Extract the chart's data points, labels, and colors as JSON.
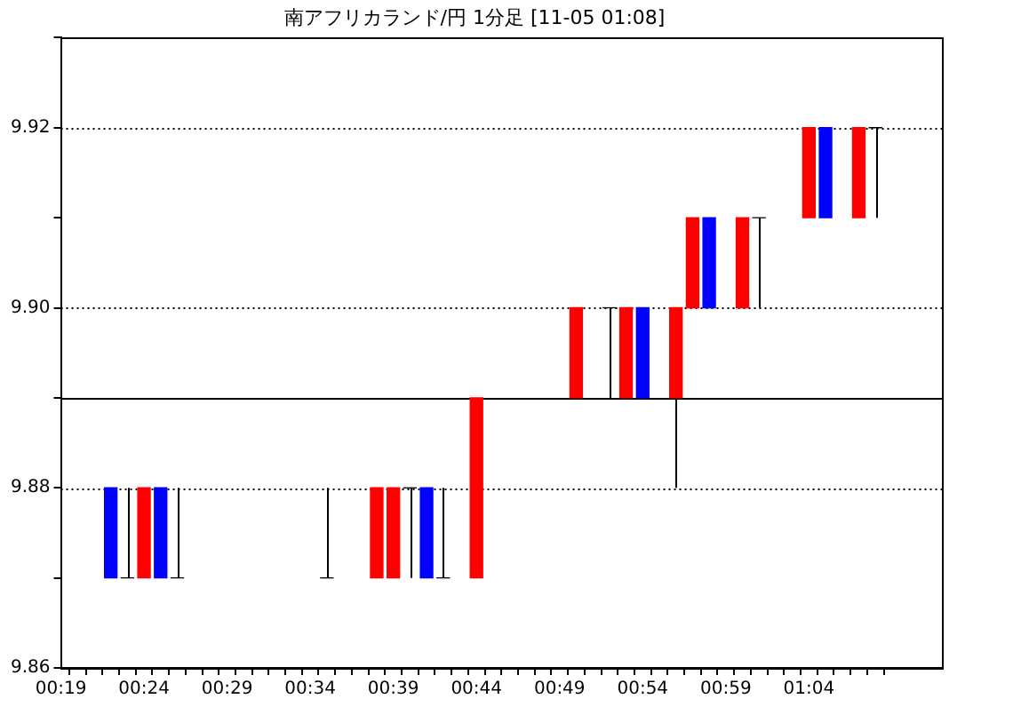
{
  "chart_data": {
    "type": "candlestick",
    "title": "南アフリカランド/円 1分足 [11-05 01:08]",
    "categories": [
      "00:19",
      null,
      null,
      null,
      null,
      "00:24",
      null,
      null,
      null,
      null,
      "00:29",
      null,
      null,
      null,
      null,
      "00:34",
      null,
      null,
      null,
      null,
      "00:39",
      null,
      null,
      null,
      null,
      "00:44",
      null,
      null,
      null,
      null,
      "00:49",
      null,
      null,
      null,
      null,
      "00:54",
      null,
      null,
      null,
      null,
      "00:59",
      null,
      null,
      null,
      null,
      "01:04",
      null,
      null,
      null,
      null
    ],
    "ohlc": [
      null,
      null,
      null,
      [
        9.88,
        9.88,
        9.87,
        9.87
      ],
      [
        9.87,
        9.88,
        9.87,
        9.87
      ],
      [
        9.87,
        9.88,
        9.87,
        9.88
      ],
      [
        9.88,
        9.88,
        9.87,
        9.87
      ],
      [
        9.87,
        9.88,
        9.87,
        9.87
      ],
      null,
      null,
      null,
      null,
      null,
      null,
      null,
      null,
      [
        9.87,
        9.88,
        9.87,
        9.87
      ],
      null,
      null,
      [
        9.87,
        9.88,
        9.87,
        9.88
      ],
      [
        9.87,
        9.88,
        9.87,
        9.88
      ],
      [
        9.88,
        9.88,
        9.87,
        9.88
      ],
      [
        9.88,
        9.88,
        9.87,
        9.87
      ],
      [
        9.87,
        9.88,
        9.87,
        9.87
      ],
      null,
      [
        9.87,
        9.89,
        9.87,
        9.89
      ],
      null,
      null,
      null,
      null,
      null,
      [
        9.89,
        9.9,
        9.89,
        9.9
      ],
      null,
      [
        9.9,
        9.9,
        9.89,
        9.9
      ],
      [
        9.89,
        9.9,
        9.89,
        9.9
      ],
      [
        9.9,
        9.9,
        9.89,
        9.89
      ],
      null,
      [
        9.89,
        9.9,
        9.88,
        9.9
      ],
      [
        9.9,
        9.91,
        9.9,
        9.91
      ],
      [
        9.91,
        9.91,
        9.9,
        9.9
      ],
      null,
      [
        9.9,
        9.91,
        9.9,
        9.91
      ],
      [
        9.91,
        9.91,
        9.9,
        9.91
      ],
      null,
      null,
      [
        9.91,
        9.92,
        9.91,
        9.92
      ],
      [
        9.92,
        9.92,
        9.91,
        9.91
      ],
      null,
      [
        9.91,
        9.92,
        9.91,
        9.92
      ],
      [
        9.92,
        9.92,
        9.91,
        9.92
      ]
    ],
    "colors": [
      null,
      null,
      null,
      "#0000ff",
      "#000000",
      "#ff0000",
      "#0000ff",
      "#000000",
      null,
      null,
      null,
      null,
      null,
      null,
      null,
      null,
      "#000000",
      null,
      null,
      "#ff0000",
      "#ff0000",
      "#000000",
      "#0000ff",
      "#000000",
      null,
      "#ff0000",
      null,
      null,
      null,
      null,
      null,
      "#ff0000",
      null,
      "#000000",
      "#ff0000",
      "#0000ff",
      null,
      "#ff0000",
      "#ff0000",
      "#0000ff",
      null,
      "#ff0000",
      "#000000",
      null,
      null,
      "#ff0000",
      "#0000ff",
      null,
      "#ff0000",
      "#000000"
    ],
    "ylim": [
      9.86,
      9.93
    ],
    "yticks": [
      9.86,
      {
        "value": 9.87,
        "label": null
      },
      9.88,
      {
        "value": 9.89,
        "label": null
      },
      {
        "value": 9.9,
        "label": "9.90"
      },
      {
        "value": 9.91,
        "label": null
      },
      9.92,
      {
        "value": 9.93,
        "label": null
      }
    ],
    "grid": "y",
    "ref_lines": [
      {
        "axis": "y",
        "value": 9.89,
        "color": "#000000"
      }
    ]
  }
}
